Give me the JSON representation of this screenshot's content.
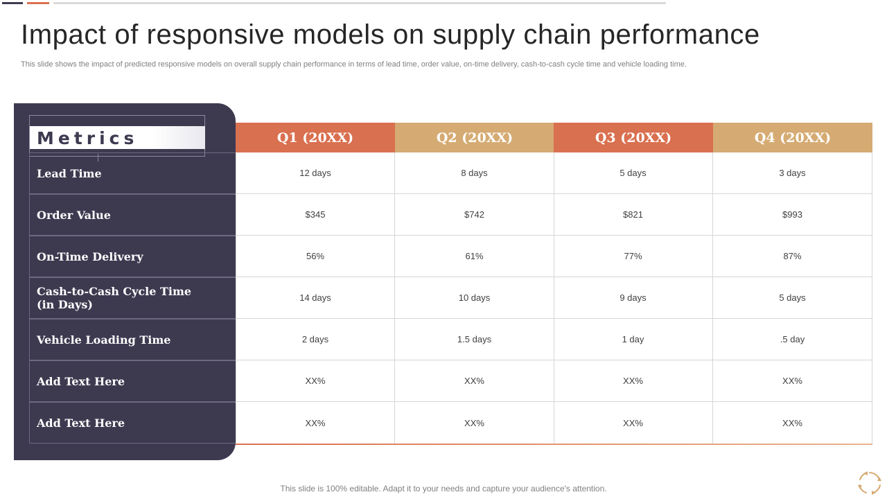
{
  "slide": {
    "title": "Impact of responsive models on supply chain performance",
    "subtitle": "This slide shows the impact of predicted responsive models on overall supply chain performance in terms of lead time, order value,  on-time delivery, cash-to-cash cycle time and vehicle loading time.",
    "footer": "This slide is 100% editable. Adapt it to your needs and capture your audience's attention."
  },
  "table": {
    "metrics_header": "Metrics",
    "columns": [
      "Q1 (20XX)",
      "Q2 (20XX)",
      "Q3 (20XX)",
      "Q4 (20XX)"
    ],
    "rows": [
      {
        "label": "Lead Time",
        "values": [
          "12 days",
          "8 days",
          "5 days",
          "3 days"
        ]
      },
      {
        "label": "Order Value",
        "values": [
          "$345",
          "$742",
          "$821",
          "$993"
        ]
      },
      {
        "label": "On-Time Delivery",
        "values": [
          "56%",
          "61%",
          "77%",
          "87%"
        ]
      },
      {
        "label": "Cash-to-Cash Cycle Time\n(in Days)",
        "values": [
          "14 days",
          "10 days",
          "9 days",
          "5 days"
        ]
      },
      {
        "label": "Vehicle  Loading Time",
        "values": [
          "2 days",
          "1.5 days",
          "1 day",
          ".5 day"
        ]
      },
      {
        "label": "Add Text Here",
        "values": [
          "XX%",
          "XX%",
          "XX%",
          "XX%"
        ]
      },
      {
        "label": "Add Text Here",
        "values": [
          "XX%",
          "XX%",
          "XX%",
          "XX%"
        ]
      }
    ]
  },
  "colors": {
    "panel": "#3d3a50",
    "accent_orange": "#d9704f",
    "accent_tan": "#d5ab73"
  },
  "icons": {
    "footer_icon": "cycle-arrows-icon"
  }
}
